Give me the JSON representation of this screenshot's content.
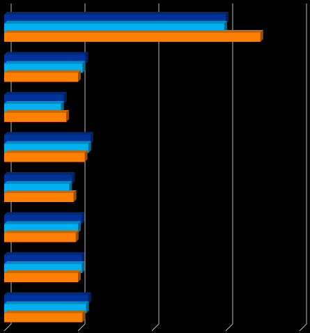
{
  "chart_data": {
    "type": "bar",
    "orientation": "horizontal",
    "background": "#000000",
    "categories": [
      null,
      null,
      null,
      null,
      null,
      null,
      null,
      null
    ],
    "series": [
      {
        "color": "#003399",
        "values": [
          3.0,
          1.1,
          0.81,
          1.17,
          0.92,
          1.05,
          1.05,
          1.14
        ]
      },
      {
        "color": "#00b0f0",
        "values": [
          2.98,
          1.06,
          0.77,
          1.14,
          0.88,
          1.0,
          1.05,
          1.11
        ]
      },
      {
        "color": "#ff8000",
        "values": [
          3.47,
          1.0,
          0.84,
          1.09,
          0.94,
          0.97,
          1.0,
          1.06
        ]
      }
    ],
    "xlim": [
      0,
      4
    ],
    "xticks": [
      0,
      1,
      2,
      3,
      4
    ],
    "grid": true
  }
}
